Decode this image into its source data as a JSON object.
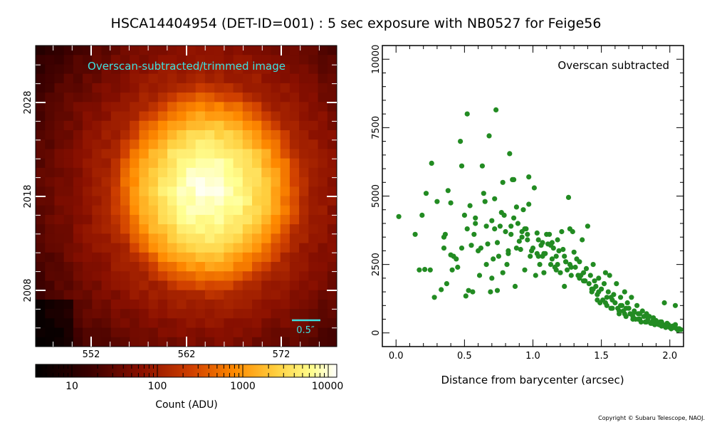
{
  "title": "HSCA14404954 (DET-ID=001) :  5 sec exposure with NB0527 for Feige56",
  "copyright": "Copyright © Subaru Telescope, NAOJ.",
  "image_panel": {
    "label": "Overscan-subtracted/trimmed image",
    "scale_bar_label": "0.5″",
    "x_ticks": [
      "552",
      "562",
      "572"
    ],
    "y_ticks": [
      "2008",
      "2018",
      "2028"
    ]
  },
  "colorbar": {
    "label": "Count (ADU)",
    "ticks": [
      "10",
      "100",
      "1000",
      "10000"
    ]
  },
  "colors": {
    "scatter_point": "#228b22",
    "panel_label": "#3ee0e0",
    "scale_bar": "#3ee0e0"
  },
  "chart_data": {
    "type": "scatter",
    "title": "Overscan subtracted",
    "xlabel": "Distance from barycenter (arcsec)",
    "ylabel": "",
    "xlim": [
      -0.1,
      2.1
    ],
    "ylim": [
      -500,
      10500
    ],
    "x_ticks": [
      "0.0",
      "0.5",
      "1.0",
      "1.5",
      "2.0"
    ],
    "y_ticks": [
      "0",
      "2500",
      "5000",
      "7500",
      "10000"
    ],
    "series": [
      {
        "x": [
          0.02,
          0.14,
          0.17,
          0.19,
          0.21,
          0.22,
          0.25,
          0.26,
          0.33,
          0.35,
          0.36,
          0.37,
          0.38,
          0.4,
          0.4,
          0.41,
          0.42,
          0.45,
          0.47,
          0.48,
          0.5,
          0.51,
          0.52,
          0.53,
          0.54,
          0.55,
          0.56,
          0.57,
          0.58,
          0.6,
          0.61,
          0.63,
          0.64,
          0.65,
          0.66,
          0.67,
          0.68,
          0.69,
          0.7,
          0.7,
          0.71,
          0.72,
          0.73,
          0.74,
          0.75,
          0.76,
          0.77,
          0.78,
          0.79,
          0.8,
          0.81,
          0.82,
          0.83,
          0.84,
          0.85,
          0.86,
          0.87,
          0.88,
          0.89,
          0.9,
          0.91,
          0.92,
          0.93,
          0.94,
          0.95,
          0.96,
          0.97,
          0.98,
          0.99,
          1.0,
          1.01,
          1.02,
          1.03,
          1.04,
          1.05,
          1.06,
          1.07,
          1.08,
          1.09,
          1.1,
          1.11,
          1.12,
          1.13,
          1.14,
          1.15,
          1.16,
          1.17,
          1.18,
          1.19,
          1.2,
          1.21,
          1.22,
          1.23,
          1.24,
          1.25,
          1.26,
          1.27,
          1.28,
          1.29,
          1.3,
          1.31,
          1.32,
          1.33,
          1.34,
          1.35,
          1.36,
          1.37,
          1.38,
          1.39,
          1.4,
          1.41,
          1.42,
          1.43,
          1.44,
          1.45,
          1.46,
          1.47,
          1.48,
          1.49,
          1.5,
          1.51,
          1.52,
          1.53,
          1.54,
          1.55,
          1.56,
          1.57,
          1.58,
          1.59,
          1.6,
          1.61,
          1.62,
          1.63,
          1.64,
          1.65,
          1.66,
          1.67,
          1.68,
          1.69,
          1.7,
          1.71,
          1.72,
          1.73,
          1.74,
          1.75,
          1.76,
          1.77,
          1.78,
          1.79,
          1.8,
          1.81,
          1.82,
          1.83,
          1.84,
          1.85,
          1.86,
          1.87,
          1.88,
          1.89,
          1.9,
          1.91,
          1.92,
          1.93,
          1.94,
          1.95,
          1.96,
          1.97,
          1.98,
          1.99,
          2.0,
          2.01,
          2.02,
          2.03,
          2.04,
          2.05,
          2.06,
          2.07,
          2.08,
          0.52,
          0.58,
          0.62,
          0.66,
          0.74,
          0.78,
          0.88,
          0.92,
          0.97,
          1.03,
          1.07,
          1.13,
          1.17,
          1.23,
          1.27,
          1.33,
          1.37,
          1.43,
          1.47,
          1.53,
          1.57,
          1.63,
          1.67,
          1.73,
          1.77,
          1.83,
          1.87,
          1.93,
          1.97,
          2.03,
          0.35,
          0.3,
          0.28,
          0.44,
          0.48,
          0.82,
          0.86,
          0.94,
          1.04,
          1.14,
          1.24,
          1.34,
          1.44,
          1.54,
          1.64,
          1.74,
          1.84,
          1.94,
          2.04,
          0.72,
          0.84,
          0.96,
          1.08,
          1.18,
          1.28,
          1.38,
          1.48,
          1.58,
          1.68,
          1.78,
          1.88,
          1.98,
          2.06
        ],
        "y": [
          4250,
          3600,
          2300,
          4300,
          2320,
          5100,
          2300,
          6200,
          1580,
          3100,
          3600,
          1800,
          5200,
          2850,
          4750,
          2300,
          2800,
          2400,
          7000,
          6100,
          4300,
          1350,
          8000,
          1550,
          4650,
          3200,
          1500,
          3600,
          4000,
          3000,
          2100,
          6100,
          5100,
          4800,
          2500,
          3250,
          7200,
          1500,
          2000,
          4100,
          2700,
          3800,
          8150,
          1550,
          2800,
          3900,
          4400,
          2200,
          4300,
          3700,
          2500,
          3000,
          6550,
          3600,
          5600,
          4200,
          1700,
          3100,
          4000,
          3350,
          3050,
          3700,
          4500,
          2300,
          3800,
          3600,
          5700,
          2800,
          3000,
          3100,
          5300,
          2100,
          3650,
          2800,
          2500,
          3200,
          3300,
          2200,
          2900,
          3600,
          3250,
          3600,
          2500,
          3300,
          3100,
          2400,
          2800,
          3400,
          3000,
          2200,
          3700,
          3050,
          1700,
          2600,
          2300,
          4950,
          3800,
          2100,
          3700,
          2950,
          2400,
          2700,
          2100,
          2600,
          2100,
          3400,
          2200,
          1900,
          2350,
          3900,
          1800,
          2100,
          1500,
          2500,
          1900,
          1700,
          1200,
          2000,
          1100,
          1600,
          1200,
          1800,
          2200,
          1000,
          1500,
          2100,
          1300,
          900,
          1400,
          1100,
          1800,
          900,
          700,
          1300,
          1000,
          800,
          1500,
          600,
          1100,
          900,
          700,
          1300,
          600,
          800,
          500,
          1000,
          700,
          500,
          400,
          800,
          600,
          400,
          700,
          500,
          600,
          350,
          400,
          550,
          300,
          450,
          350,
          300,
          400,
          250,
          300,
          1100,
          200,
          250,
          300,
          200,
          150,
          250,
          200,
          1000,
          150,
          100,
          150,
          120,
          3800,
          4200,
          3100,
          3900,
          3300,
          5500,
          4600,
          3500,
          4700,
          2900,
          2800,
          3200,
          2300,
          2800,
          2500,
          2100,
          1900,
          1600,
          1400,
          1100,
          900,
          800,
          700,
          500,
          500,
          400,
          350,
          300,
          250,
          200,
          3500,
          4800,
          1300,
          2700,
          3100,
          2900,
          5600,
          3800,
          3400,
          2700,
          2600,
          2000,
          1600,
          1300,
          1000,
          750,
          600,
          400,
          300,
          4900,
          3900,
          3400,
          2900,
          2500,
          2400,
          1900,
          1500,
          1200,
          900,
          700,
          500,
          350,
          150
        ]
      }
    ]
  }
}
